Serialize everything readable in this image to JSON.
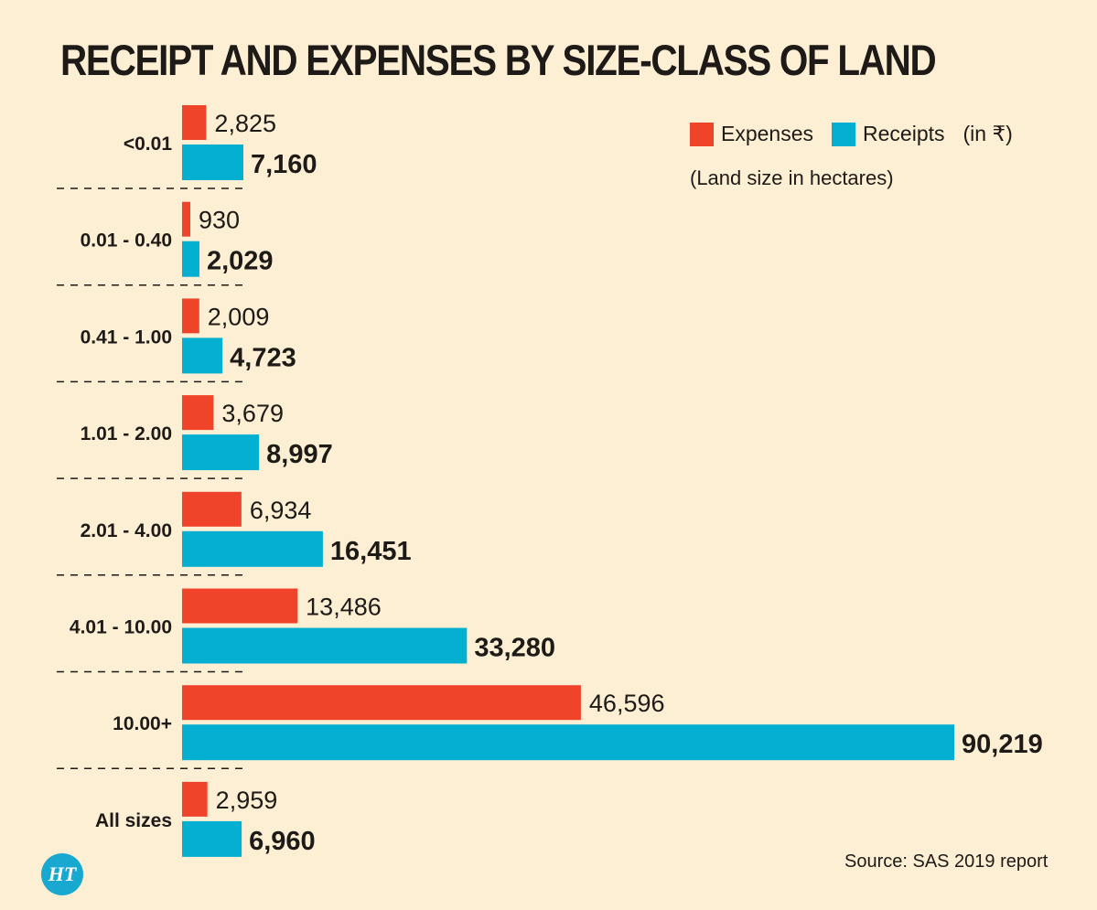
{
  "title": "RECEIPT AND EXPENSES BY SIZE-CLASS OF LAND",
  "legend": {
    "expenses_label": "Expenses",
    "receipts_label": "Receipts",
    "unit_note": "(in ₹)",
    "land_note": "(Land size in hectares)"
  },
  "source": "Source: SAS 2019 report",
  "logo_text": "HT",
  "colors": {
    "expenses": "#ef432a",
    "receipts": "#04afd1",
    "background": "#fdefd3",
    "text": "#1e1a17"
  },
  "chart_data": {
    "type": "bar",
    "orientation": "horizontal",
    "title": "RECEIPT AND EXPENSES BY SIZE-CLASS OF LAND",
    "categories": [
      "<0.01",
      "0.01 - 0.40",
      "0.41 - 1.00",
      "1.01 - 2.00",
      "2.01 - 4.00",
      "4.01 - 10.00",
      "10.00+",
      "All sizes"
    ],
    "series": [
      {
        "name": "Expenses",
        "values": [
          2825,
          930,
          2009,
          3679,
          6934,
          13486,
          46596,
          2959
        ],
        "labels": [
          "2,825",
          "930",
          "2,009",
          "3,679",
          "6,934",
          "13,486",
          "46,596",
          "2,959"
        ]
      },
      {
        "name": "Receipts",
        "values": [
          7160,
          2029,
          4723,
          8997,
          16451,
          33280,
          90219,
          6960
        ],
        "labels": [
          "7,160",
          "2,029",
          "4,723",
          "8,997",
          "16,451",
          "33,280",
          "90,219",
          "6,960"
        ]
      }
    ],
    "xlim": [
      0,
      90219
    ],
    "unit": "₹",
    "category_axis_label": "Land size in hectares",
    "grid": false,
    "legend_position": "top-right"
  }
}
